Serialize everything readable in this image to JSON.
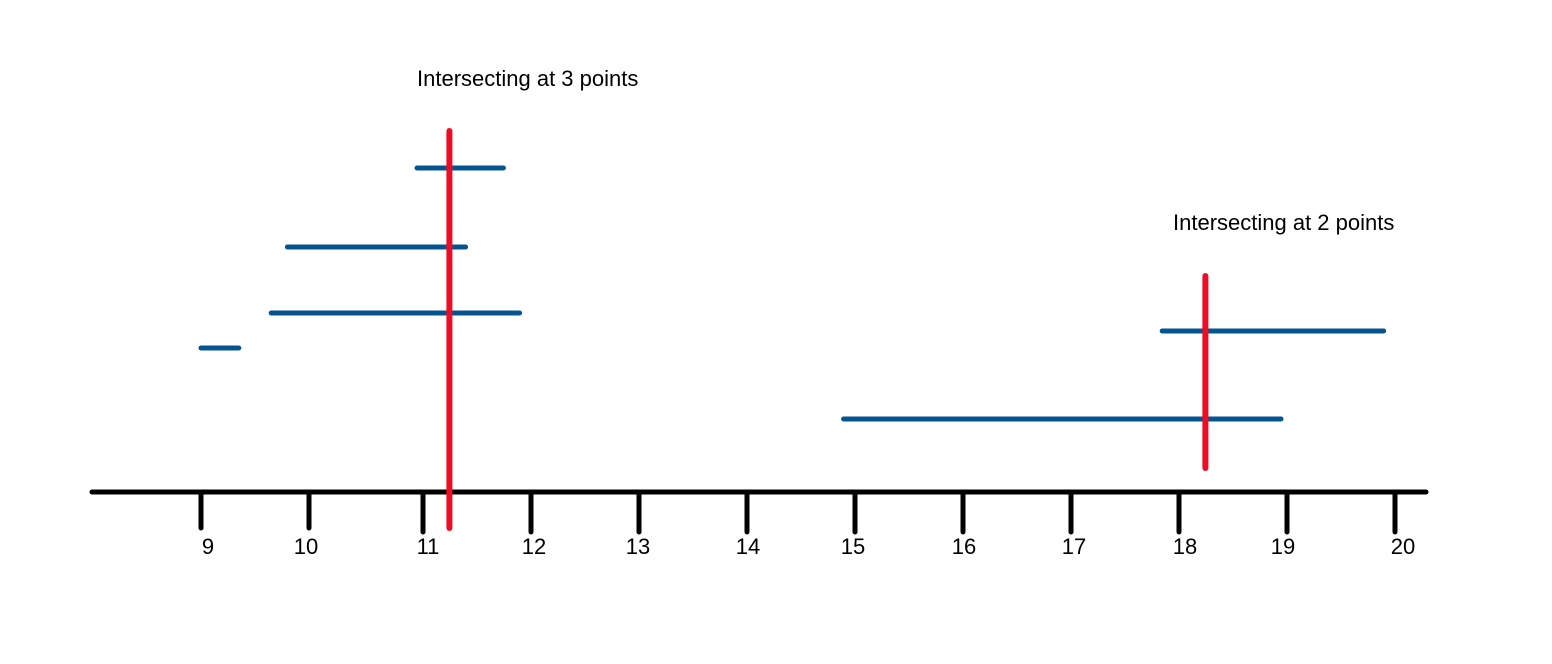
{
  "annotations": {
    "left": "Intersecting at 3 points",
    "right": "Intersecting at 2 points"
  },
  "axis": {
    "ticks": [
      "9",
      "10",
      "11",
      "12",
      "13",
      "14",
      "15",
      "16",
      "17",
      "18",
      "19",
      "20"
    ]
  },
  "intervals": [
    {
      "start": 11.0,
      "end": 11.8
    },
    {
      "start": 9.8,
      "end": 11.45
    },
    {
      "start": 9.65,
      "end": 11.95
    },
    {
      "start": 9.0,
      "end": 9.35
    },
    {
      "start": 17.9,
      "end": 19.95
    },
    {
      "start": 14.95,
      "end": 19.0
    }
  ],
  "probes": [
    {
      "x": 11.3,
      "label": "Intersecting at 3 points"
    },
    {
      "x": 18.3,
      "label": "Intersecting at 2 points"
    }
  ],
  "colors": {
    "axis": "#000000",
    "interval": "#04548f",
    "probe": "#ee0d24"
  }
}
